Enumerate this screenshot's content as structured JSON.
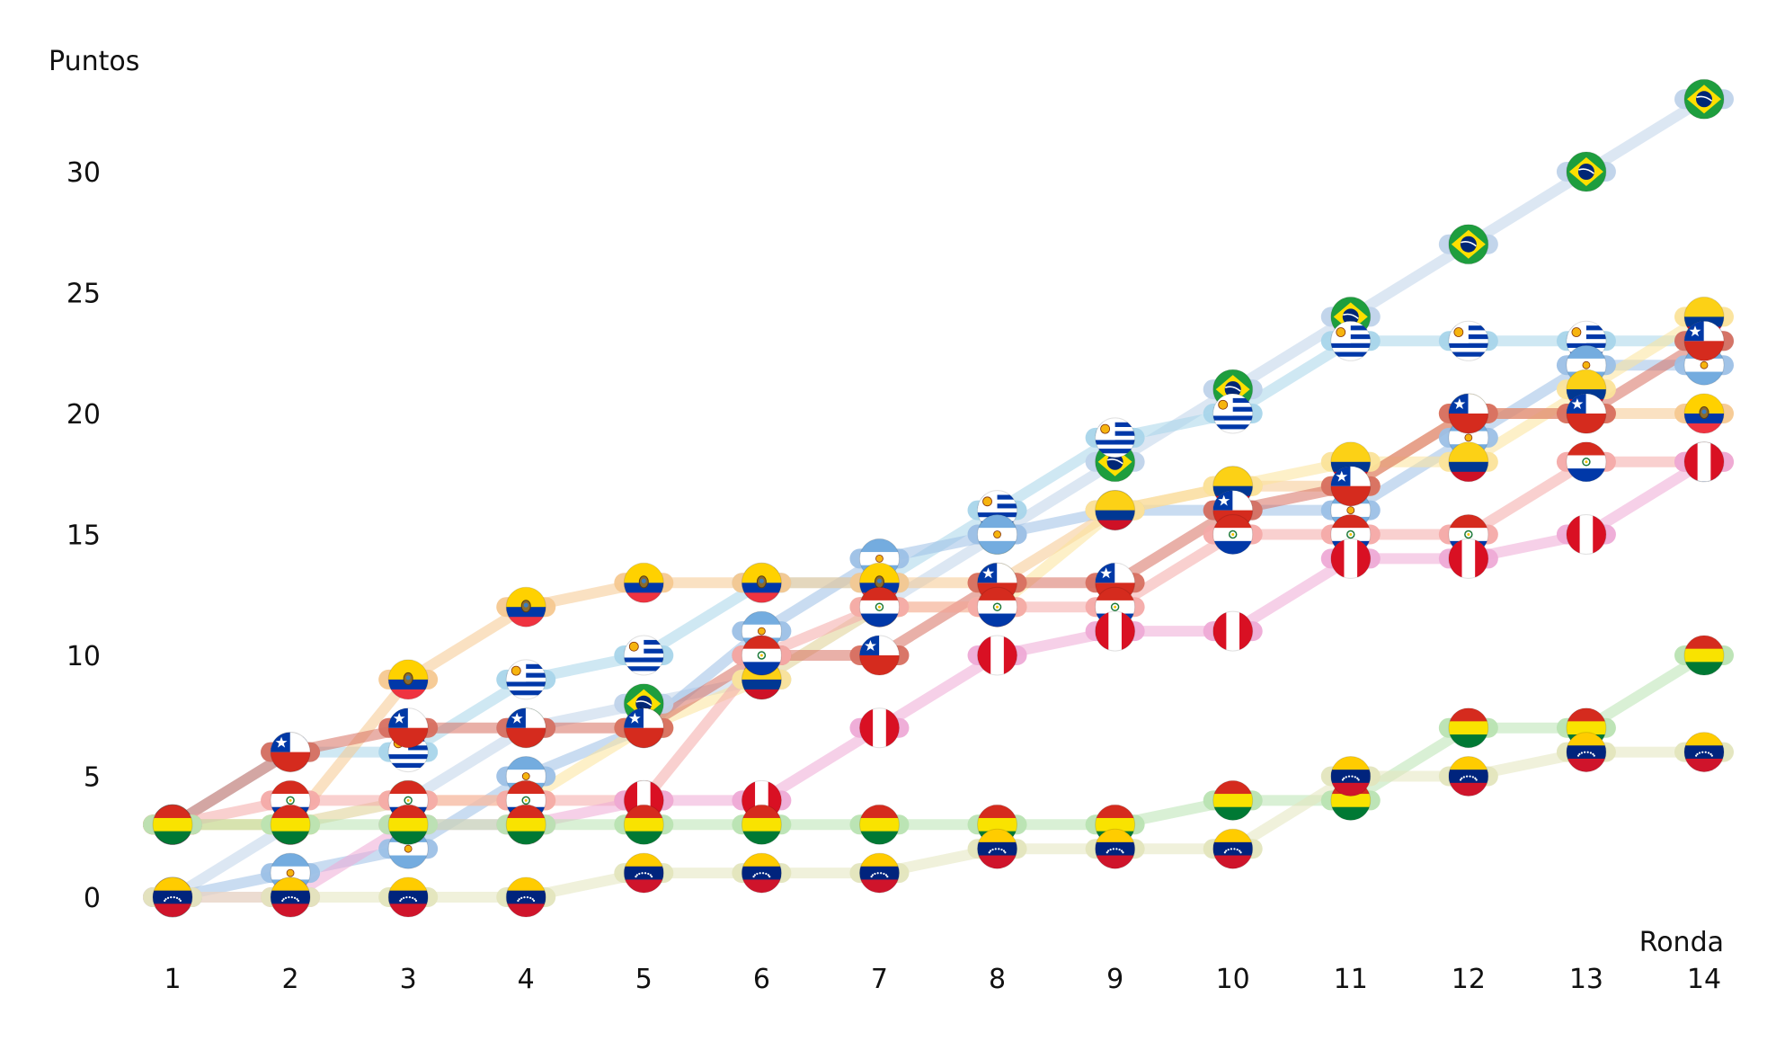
{
  "chart_data": {
    "type": "line",
    "ylabel": "Puntos",
    "xlabel": "Ronda",
    "x": [
      1,
      2,
      3,
      4,
      5,
      6,
      7,
      8,
      9,
      10,
      11,
      12,
      13,
      14
    ],
    "y_ticks": [
      0,
      5,
      10,
      15,
      20,
      25,
      30
    ],
    "ylim": [
      -2,
      33
    ],
    "grid": false,
    "legend": "none (series marked by flag icons)",
    "series": [
      {
        "flag": "brazil",
        "color": "#bfd3ea",
        "values": [
          0,
          3,
          4,
          7,
          8,
          9,
          12,
          15,
          18,
          21,
          24,
          27,
          30,
          33
        ]
      },
      {
        "flag": "uruguay",
        "color": "#a8d5ea",
        "values": [
          3,
          6,
          6,
          9,
          10,
          13,
          13,
          16,
          19,
          20,
          23,
          23,
          23,
          23
        ]
      },
      {
        "flag": "argentina",
        "color": "#9cc0e6",
        "values": [
          0,
          1,
          2,
          5,
          7,
          11,
          14,
          15,
          16,
          16,
          16,
          19,
          22,
          22
        ]
      },
      {
        "flag": "ecuador",
        "color": "#f5c890",
        "values": [
          3,
          3,
          9,
          12,
          13,
          13,
          13,
          13,
          16,
          17,
          17,
          20,
          20,
          20
        ]
      },
      {
        "flag": "colombia",
        "color": "#fbe39a",
        "values": [
          3,
          3,
          4,
          4,
          7,
          9,
          12,
          12,
          16,
          17,
          18,
          18,
          21,
          24
        ]
      },
      {
        "flag": "chile",
        "color": "#d76f60",
        "values": [
          3,
          6,
          7,
          7,
          7,
          10,
          10,
          13,
          13,
          16,
          17,
          20,
          20,
          23
        ]
      },
      {
        "flag": "paraguay",
        "color": "#f4aaa8",
        "values": [
          3,
          4,
          4,
          4,
          4,
          10,
          12,
          12,
          12,
          15,
          15,
          15,
          18,
          18
        ]
      },
      {
        "flag": "peru",
        "color": "#eeaad6",
        "values": [
          0,
          0,
          3,
          3,
          4,
          4,
          7,
          10,
          11,
          11,
          14,
          14,
          15,
          18
        ]
      },
      {
        "flag": "bolivia",
        "color": "#b9e3b2",
        "values": [
          3,
          3,
          3,
          3,
          3,
          3,
          3,
          3,
          3,
          4,
          4,
          7,
          7,
          10
        ]
      },
      {
        "flag": "venezuela",
        "color": "#e3e5bd",
        "values": [
          0,
          0,
          0,
          0,
          1,
          1,
          1,
          2,
          2,
          2,
          5,
          5,
          6,
          6
        ]
      }
    ]
  }
}
